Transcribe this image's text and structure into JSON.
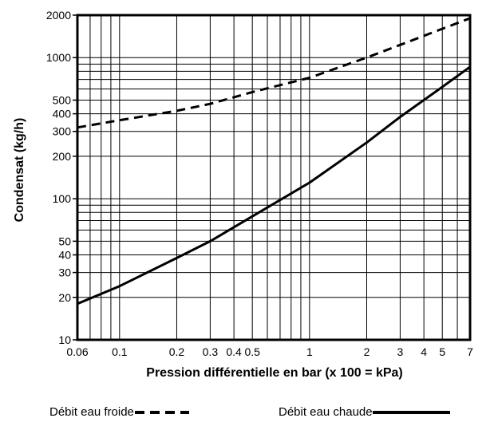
{
  "chart_data": {
    "type": "line",
    "title": "",
    "xlabel": "Pression différentielle en bar (x 100 = kPa)",
    "ylabel": "Condensat (kg/h)",
    "xscale": "log",
    "yscale": "log",
    "xlim": [
      0.06,
      7
    ],
    "ylim": [
      10,
      2000
    ],
    "grid": true,
    "x_ticks": [
      0.06,
      0.1,
      0.2,
      0.3,
      0.4,
      0.5,
      1,
      2,
      3,
      4,
      5,
      7
    ],
    "x_tick_labels": [
      "0.06",
      "0.1",
      "0.2",
      "0.3",
      "0.4",
      "0.5",
      "1",
      "2",
      "3",
      "4",
      "5",
      "7"
    ],
    "x_grid": [
      0.06,
      0.07,
      0.08,
      0.09,
      0.1,
      0.2,
      0.3,
      0.4,
      0.5,
      0.6,
      0.7,
      0.8,
      0.9,
      1,
      2,
      3,
      4,
      5,
      6,
      7
    ],
    "y_ticks": [
      10,
      20,
      30,
      40,
      50,
      100,
      200,
      300,
      400,
      500,
      1000,
      2000
    ],
    "y_tick_labels": [
      "10",
      "20",
      "30",
      "40",
      "50",
      "100",
      "200",
      "300",
      "400",
      "500",
      "1000",
      "2000"
    ],
    "y_grid": [
      10,
      20,
      30,
      40,
      50,
      60,
      70,
      80,
      90,
      100,
      200,
      300,
      400,
      500,
      600,
      700,
      800,
      900,
      1000,
      2000
    ],
    "legend_position": "bottom",
    "series": [
      {
        "name": "Débit eau froide",
        "style": "dashed",
        "x": [
          0.06,
          0.1,
          0.2,
          0.3,
          0.5,
          1,
          2,
          3,
          5,
          7
        ],
        "y": [
          320,
          360,
          420,
          470,
          570,
          720,
          1000,
          1230,
          1600,
          1900
        ]
      },
      {
        "name": "Débit eau chaude",
        "style": "solid",
        "x": [
          0.06,
          0.1,
          0.2,
          0.3,
          0.5,
          1,
          2,
          3,
          5,
          7
        ],
        "y": [
          18,
          24,
          38,
          50,
          75,
          130,
          250,
          380,
          620,
          860
        ]
      }
    ],
    "colors": {
      "line": "#000000",
      "grid": "#000000",
      "background": "#ffffff"
    }
  }
}
